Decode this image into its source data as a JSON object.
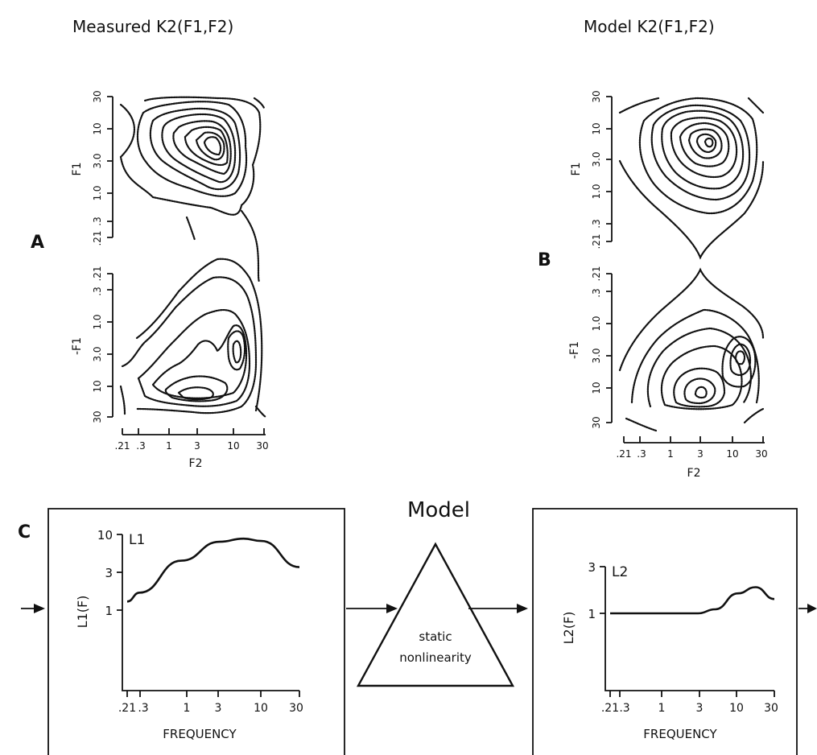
{
  "panel_a": {
    "letter": "A",
    "title": "Measured K2(F1,F2)",
    "f1_label": "F1",
    "neg_f1_label": "-F1",
    "f2_label": "F2",
    "f1_ticks": [
      "30",
      "10",
      "3.0",
      "1.0",
      ".3",
      ".21"
    ],
    "neg_f1_ticks": [
      ".21",
      ".3",
      "1.0",
      "3.0",
      "10",
      "30"
    ],
    "f2_ticks": [
      ".21",
      ".3",
      "1",
      "3",
      "10",
      "30"
    ]
  },
  "panel_b": {
    "letter": "B",
    "title": "Model K2(F1,F2)",
    "f1_label": "F1",
    "neg_f1_label": "-F1",
    "f2_label": "F2",
    "f1_ticks": [
      "30",
      "10",
      "3.0",
      "1.0",
      ".3",
      ".21"
    ],
    "neg_f1_ticks": [
      ".21",
      ".3",
      "1.0",
      "3.0",
      "10",
      "30"
    ],
    "f2_ticks": [
      ".21",
      ".3",
      "1",
      "3",
      "10",
      "30"
    ]
  },
  "panel_c": {
    "letter": "C",
    "title": "Model",
    "nonlinearity_line1": "static",
    "nonlinearity_line2": "nonlinearity",
    "filter1": {
      "name": "L1",
      "ylabel": "L1(F)",
      "y_ticks": [
        "10",
        "3",
        "1"
      ],
      "x_ticks": [
        ".21",
        ".3",
        "1",
        "3",
        "10",
        "30"
      ],
      "xlabel": "FREQUENCY"
    },
    "filter2": {
      "name": "L2",
      "ylabel": "L2(F)",
      "y_ticks": [
        "3",
        "1"
      ],
      "x_ticks": [
        ".21",
        ".3",
        "1",
        "3",
        "10",
        "30"
      ],
      "xlabel": "FREQUENCY"
    }
  },
  "chart_data": [
    {
      "type": "line",
      "name": "L1",
      "x": [
        0.21,
        0.3,
        1,
        3,
        6,
        10,
        30
      ],
      "y": [
        1.3,
        1.7,
        4.5,
        8.0,
        8.8,
        8.2,
        3.7
      ],
      "xscale": "log",
      "yscale": "log",
      "xlim": [
        0.21,
        30
      ],
      "ylim": [
        0.3,
        10
      ],
      "xlabel": "FREQUENCY",
      "ylabel": "L1(F)"
    },
    {
      "type": "line",
      "name": "L2",
      "x": [
        0.21,
        0.3,
        1,
        3,
        5,
        10,
        17,
        30
      ],
      "y": [
        1.0,
        1.0,
        1.0,
        1.0,
        1.1,
        1.6,
        1.85,
        1.4
      ],
      "xscale": "log",
      "yscale": "log",
      "xlim": [
        0.21,
        30
      ],
      "ylim": [
        0.3,
        3
      ],
      "xlabel": "FREQUENCY",
      "ylabel": "L2(F)"
    }
  ]
}
